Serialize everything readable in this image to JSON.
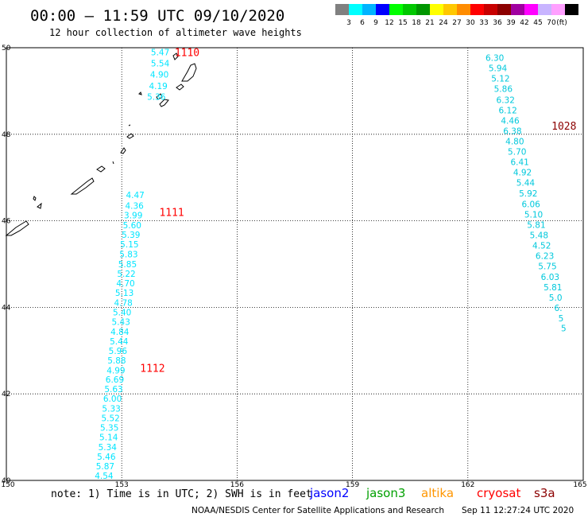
{
  "header": {
    "title": "00:00 – 11:59 UTC 09/10/2020",
    "subtitle": "12 hour collection of altimeter wave heights"
  },
  "legend": {
    "colors": [
      "#808080",
      "#00ffff",
      "#00b4ff",
      "#0000ff",
      "#00ff00",
      "#00c800",
      "#009600",
      "#ffff00",
      "#ffc800",
      "#ff8c00",
      "#ff0000",
      "#c80000",
      "#8c0000",
      "#a000a0",
      "#ff00ff",
      "#c8b4ff",
      "#ffa0ff",
      "#000000"
    ],
    "labels": [
      "3",
      "6",
      "9",
      "12",
      "15",
      "18",
      "21",
      "24",
      "27",
      "30",
      "33",
      "36",
      "39",
      "42",
      "45",
      "70"
    ],
    "unit": "(ft)"
  },
  "axes": {
    "lon_ticks": [
      "150",
      "153",
      "156",
      "159",
      "162",
      "165"
    ],
    "lat_ticks": [
      "50",
      "48",
      "46",
      "44",
      "42",
      "40"
    ]
  },
  "chart_data": {
    "type": "scatter",
    "xlim": [
      150,
      165
    ],
    "ylim": [
      40,
      50
    ],
    "grid": true,
    "tracks": [
      {
        "id": "1110",
        "label_pos": [
          154.7,
          49.9
        ],
        "label_color": "#ff0000",
        "value_color": "#00e5ff",
        "points": [
          [
            154.0,
            49.9,
            "5.47"
          ],
          [
            154.0,
            49.64,
            "5.54"
          ],
          [
            153.98,
            49.38,
            "4.90"
          ],
          [
            153.95,
            49.12,
            "4.19"
          ],
          [
            153.9,
            48.87,
            "5.36"
          ]
        ]
      },
      {
        "id": "1111",
        "label_pos": [
          154.3,
          46.2
        ],
        "label_color": "#ff0000",
        "value_color": "#00e5ff",
        "points": [
          [
            153.35,
            46.6,
            "4.47"
          ],
          [
            153.33,
            46.35,
            "4.36"
          ],
          [
            153.3,
            46.13,
            "3.99"
          ],
          [
            153.27,
            45.9,
            "5.60"
          ],
          [
            153.24,
            45.68,
            "5.39"
          ],
          [
            153.2,
            45.46,
            "5.15"
          ],
          [
            153.18,
            45.23,
            "5.83"
          ],
          [
            153.15,
            45.0,
            "5.85"
          ],
          [
            153.12,
            44.78,
            "5.22"
          ],
          [
            153.1,
            44.56,
            "4.70"
          ],
          [
            153.07,
            44.34,
            "5.13"
          ],
          [
            153.04,
            44.11,
            "4.78"
          ],
          [
            153.01,
            43.89,
            "5.40"
          ],
          [
            152.98,
            43.67,
            "5.43"
          ],
          [
            152.95,
            43.44,
            "4.84"
          ],
          [
            152.93,
            43.22,
            "5.44"
          ],
          [
            152.9,
            43.0,
            "5.96"
          ],
          [
            152.87,
            42.78,
            "5.88"
          ],
          [
            152.85,
            42.55,
            "4.99"
          ],
          [
            152.82,
            42.33,
            "6.69"
          ],
          [
            152.79,
            42.11,
            "5.63"
          ],
          [
            152.76,
            41.89,
            "6.00"
          ],
          [
            152.73,
            41.66,
            "5.33"
          ],
          [
            152.71,
            41.44,
            "5.52"
          ],
          [
            152.68,
            41.22,
            "5.35"
          ],
          [
            152.66,
            41.0,
            "5.14"
          ],
          [
            152.63,
            40.77,
            "5.34"
          ],
          [
            152.6,
            40.55,
            "5.46"
          ],
          [
            152.57,
            40.33,
            "5.87"
          ],
          [
            152.54,
            40.11,
            "4.54"
          ]
        ]
      },
      {
        "id": "1112",
        "label_pos": [
          153.8,
          42.6
        ],
        "label_color": "#ff0000",
        "value_color": "#00e5ff",
        "points": []
      },
      {
        "id": "1028",
        "label_pos": [
          164.5,
          48.2
        ],
        "label_color": "#8c0000",
        "value_color": "#00c8dc",
        "points": [
          [
            162.7,
            49.77,
            "6.30"
          ],
          [
            162.78,
            49.53,
            "5.94"
          ],
          [
            162.85,
            49.29,
            "5.12"
          ],
          [
            162.92,
            49.05,
            "5.86"
          ],
          [
            162.98,
            48.8,
            "6.32"
          ],
          [
            163.04,
            48.56,
            "6.12"
          ],
          [
            163.1,
            48.32,
            "4.46"
          ],
          [
            163.16,
            48.08,
            "6.38"
          ],
          [
            163.22,
            47.84,
            "4.80"
          ],
          [
            163.28,
            47.6,
            "5.70"
          ],
          [
            163.35,
            47.36,
            "6.41"
          ],
          [
            163.42,
            47.12,
            "4.92"
          ],
          [
            163.5,
            46.88,
            "5.44"
          ],
          [
            163.57,
            46.64,
            "5.92"
          ],
          [
            163.64,
            46.39,
            "6.06"
          ],
          [
            163.71,
            46.15,
            "5.10"
          ],
          [
            163.78,
            45.91,
            "5.81"
          ],
          [
            163.85,
            45.67,
            "5.48"
          ],
          [
            163.92,
            45.43,
            "4.52"
          ],
          [
            164.0,
            45.19,
            "6.23"
          ],
          [
            164.07,
            44.95,
            "5.75"
          ],
          [
            164.14,
            44.71,
            "6.03"
          ],
          [
            164.21,
            44.47,
            "5.81"
          ],
          [
            164.28,
            44.23,
            "5.0"
          ],
          [
            164.35,
            43.99,
            "6."
          ],
          [
            164.42,
            43.75,
            "5"
          ],
          [
            164.49,
            43.52,
            "5"
          ]
        ]
      }
    ]
  },
  "footer": {
    "note": "note: 1) Time is in UTC; 2) SWH is in feet",
    "satellites": [
      {
        "name": "jason2",
        "color": "#0000ff"
      },
      {
        "name": "jason3",
        "color": "#00a000"
      },
      {
        "name": "altika",
        "color": "#ff9600"
      },
      {
        "name": "cryosat",
        "color": "#ff0000"
      },
      {
        "name": "s3a",
        "color": "#8c0000"
      }
    ],
    "credit": "NOAA/NESDIS Center for Satellite Applications and Research",
    "timestamp": "Sep 11 12:27:24 UTC 2020"
  }
}
